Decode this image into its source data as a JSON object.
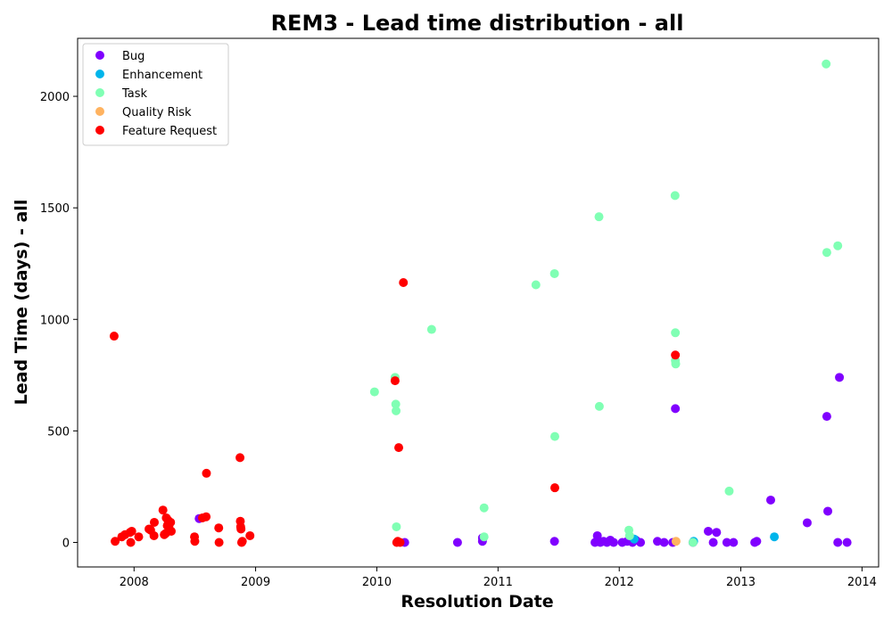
{
  "chart_data": {
    "type": "scatter",
    "title": "REM3 - Lead time distribution - all",
    "xlabel": "Resolution Date",
    "ylabel": "Lead Time (days) - all",
    "x_type": "date",
    "xlim": [
      "2007-07-15",
      "2014-02-20"
    ],
    "ylim": [
      -110,
      2260
    ],
    "xticks": [
      "2008-01-01",
      "2009-01-01",
      "2010-01-01",
      "2011-01-01",
      "2012-01-01",
      "2013-01-01",
      "2014-01-01"
    ],
    "xtick_labels": [
      "2008",
      "2009",
      "2010",
      "2011",
      "2012",
      "2013",
      "2014"
    ],
    "yticks": [
      0,
      500,
      1000,
      1500,
      2000
    ],
    "ytick_labels": [
      "0",
      "500",
      "1000",
      "1500",
      "2000"
    ],
    "grid": false,
    "legend_position": "top-left",
    "series": [
      {
        "name": "Bug",
        "color": "#8000ff",
        "points": [
          [
            "2008-07-15",
            107
          ],
          [
            "2010-03-26",
            0
          ],
          [
            "2010-09-01",
            0
          ],
          [
            "2010-11-15",
            5
          ],
          [
            "2010-11-15",
            20
          ],
          [
            "2011-06-20",
            5
          ],
          [
            "2011-10-20",
            0
          ],
          [
            "2011-10-27",
            30
          ],
          [
            "2011-11-05",
            0
          ],
          [
            "2011-11-15",
            5
          ],
          [
            "2011-11-25",
            0
          ],
          [
            "2011-12-05",
            10
          ],
          [
            "2011-12-15",
            0
          ],
          [
            "2012-01-10",
            0
          ],
          [
            "2012-01-25",
            5
          ],
          [
            "2012-02-10",
            0
          ],
          [
            "2012-02-20",
            10
          ],
          [
            "2012-03-05",
            0
          ],
          [
            "2012-04-25",
            5
          ],
          [
            "2012-05-15",
            0
          ],
          [
            "2012-06-10",
            0
          ],
          [
            "2012-06-18",
            600
          ],
          [
            "2012-08-10",
            0
          ],
          [
            "2012-09-25",
            50
          ],
          [
            "2012-10-10",
            0
          ],
          [
            "2012-10-20",
            45
          ],
          [
            "2012-11-20",
            0
          ],
          [
            "2012-12-10",
            0
          ],
          [
            "2013-02-12",
            0
          ],
          [
            "2013-02-18",
            5
          ],
          [
            "2013-04-01",
            190
          ],
          [
            "2013-07-20",
            88
          ],
          [
            "2013-09-17",
            565
          ],
          [
            "2013-09-20",
            140
          ],
          [
            "2013-10-20",
            0
          ],
          [
            "2013-10-25",
            740
          ],
          [
            "2013-11-17",
            0
          ]
        ]
      },
      {
        "name": "Enhancement",
        "color": "#00b5eb",
        "points": [
          [
            "2012-02-15",
            15
          ],
          [
            "2012-08-12",
            5
          ],
          [
            "2013-04-12",
            25
          ]
        ]
      },
      {
        "name": "Task",
        "color": "#80ffb4",
        "points": [
          [
            "2009-12-25",
            675
          ],
          [
            "2010-02-25",
            740
          ],
          [
            "2010-02-27",
            620
          ],
          [
            "2010-02-28",
            590
          ],
          [
            "2010-03-01",
            70
          ],
          [
            "2010-06-15",
            955
          ],
          [
            "2010-11-20",
            155
          ],
          [
            "2010-11-20",
            25
          ],
          [
            "2011-04-25",
            1155
          ],
          [
            "2011-06-20",
            1205
          ],
          [
            "2011-06-21",
            475
          ],
          [
            "2011-11-01",
            1460
          ],
          [
            "2011-11-02",
            610
          ],
          [
            "2012-01-30",
            55
          ],
          [
            "2012-02-01",
            30
          ],
          [
            "2012-06-17",
            1555
          ],
          [
            "2012-06-18",
            940
          ],
          [
            "2012-06-18",
            815
          ],
          [
            "2012-06-19",
            800
          ],
          [
            "2012-08-10",
            0
          ],
          [
            "2012-11-27",
            230
          ],
          [
            "2013-09-15",
            2145
          ],
          [
            "2013-09-17",
            1300
          ],
          [
            "2013-10-20",
            1330
          ]
        ]
      },
      {
        "name": "Quality Risk",
        "color": "#ffb360",
        "points": [
          [
            "2012-06-20",
            5
          ]
        ]
      },
      {
        "name": "Feature Request",
        "color": "#ff0000",
        "points": [
          [
            "2007-11-02",
            925
          ],
          [
            "2007-11-05",
            5
          ],
          [
            "2007-11-25",
            25
          ],
          [
            "2007-12-05",
            35
          ],
          [
            "2007-12-20",
            45
          ],
          [
            "2007-12-22",
            0
          ],
          [
            "2007-12-25",
            50
          ],
          [
            "2008-01-15",
            25
          ],
          [
            "2008-02-15",
            60
          ],
          [
            "2008-02-20",
            55
          ],
          [
            "2008-03-01",
            30
          ],
          [
            "2008-03-02",
            90
          ],
          [
            "2008-03-28",
            145
          ],
          [
            "2008-04-01",
            35
          ],
          [
            "2008-04-05",
            40
          ],
          [
            "2008-04-07",
            110
          ],
          [
            "2008-04-10",
            75
          ],
          [
            "2008-04-12",
            100
          ],
          [
            "2008-04-15",
            70
          ],
          [
            "2008-04-20",
            90
          ],
          [
            "2008-04-22",
            50
          ],
          [
            "2008-07-01",
            25
          ],
          [
            "2008-07-02",
            5
          ],
          [
            "2008-07-25",
            110
          ],
          [
            "2008-08-05",
            115
          ],
          [
            "2008-08-06",
            310
          ],
          [
            "2008-09-12",
            65
          ],
          [
            "2008-09-13",
            0
          ],
          [
            "2008-11-15",
            380
          ],
          [
            "2008-11-16",
            95
          ],
          [
            "2008-11-17",
            70
          ],
          [
            "2008-11-18",
            60
          ],
          [
            "2008-11-20",
            0
          ],
          [
            "2008-11-22",
            5
          ],
          [
            "2008-12-15",
            30
          ],
          [
            "2010-02-25",
            725
          ],
          [
            "2010-03-02",
            0
          ],
          [
            "2010-03-05",
            5
          ],
          [
            "2010-03-08",
            425
          ],
          [
            "2010-03-12",
            0
          ],
          [
            "2010-03-22",
            1165
          ],
          [
            "2011-06-21",
            245
          ],
          [
            "2012-06-18",
            840
          ]
        ]
      }
    ]
  }
}
